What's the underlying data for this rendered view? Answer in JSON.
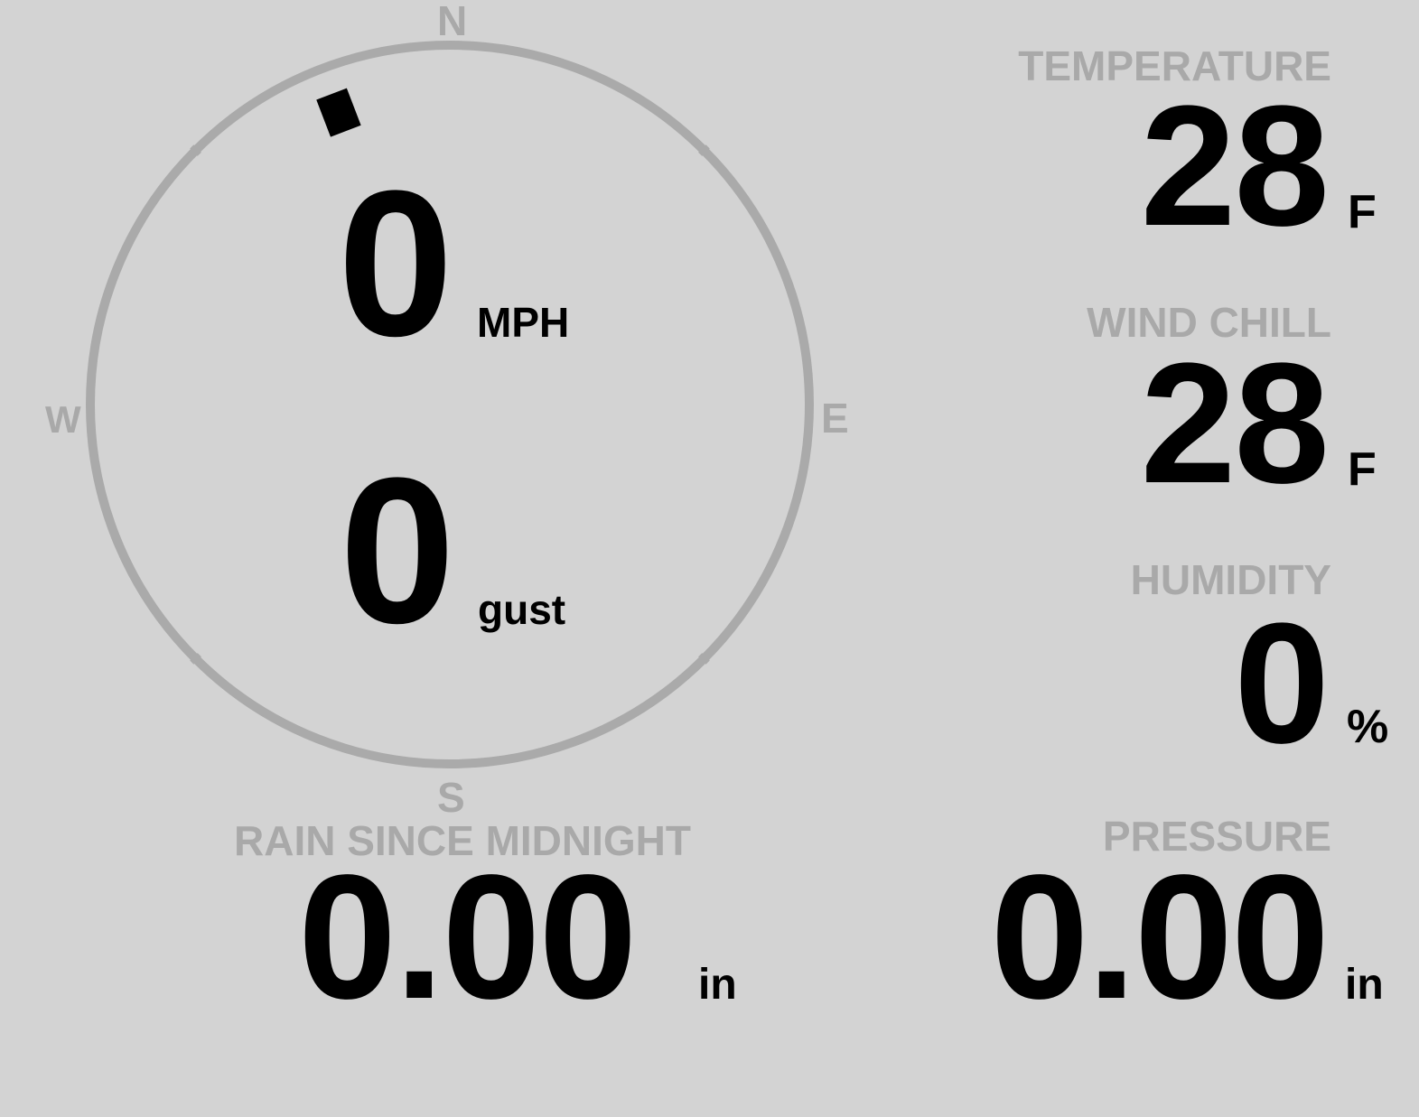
{
  "wind": {
    "compass_labels": {
      "n": "N",
      "e": "E",
      "s": "S",
      "w": "W"
    },
    "direction_degrees": 339,
    "speed": "0",
    "speed_unit": "MPH",
    "gust": "0",
    "gust_unit": "gust"
  },
  "temperature": {
    "label": "TEMPERATURE",
    "value": "28",
    "unit": "F"
  },
  "wind_chill": {
    "label": "WIND CHILL",
    "value": "28",
    "unit": "F"
  },
  "humidity": {
    "label": "HUMIDITY",
    "value": "0",
    "unit": "%"
  },
  "rain": {
    "label": "RAIN SINCE MIDNIGHT",
    "value": "0.00",
    "unit": "in"
  },
  "pressure": {
    "label": "PRESSURE",
    "value": "0.00",
    "unit": "in"
  },
  "colors": {
    "background": "#d3d3d3",
    "label": "#a9a9a9",
    "value": "#000000",
    "dial": "#aaaaaa"
  }
}
